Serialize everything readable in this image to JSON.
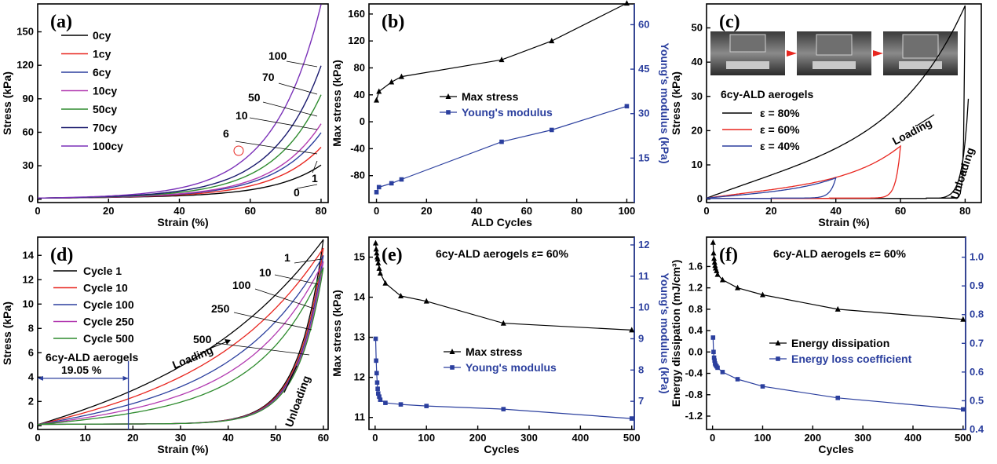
{
  "colors": {
    "black": "#000000",
    "red": "#e8261f",
    "blue": "#2b3f9e",
    "magenta": "#b23ab0",
    "green": "#2e8b2e",
    "navy": "#1a1a6e",
    "purple": "#7a30b8",
    "axis2": "#2b3f9e"
  },
  "chart_data": [
    {
      "id": "a",
      "type": "line",
      "panel_label": "(a)",
      "xlabel": "Strain (%)",
      "ylabel": "Stress (kPa)",
      "xlim": [
        0,
        82
      ],
      "ylim": [
        -3,
        175
      ],
      "xticks": [
        0,
        20,
        40,
        60,
        80
      ],
      "yticks": [
        0,
        30,
        60,
        90,
        120,
        150
      ],
      "legend": {
        "placement": "top-left"
      },
      "series": [
        {
          "name": "0cy",
          "color": "black",
          "k": 29,
          "b": 6,
          "end": 80,
          "curve_label": "0"
        },
        {
          "name": "1cy",
          "color": "red",
          "k": 45,
          "b": 6,
          "end": 80,
          "curve_label": "1"
        },
        {
          "name": "6cy",
          "color": "blue",
          "k": 58,
          "b": 6,
          "end": 80,
          "curve_label": "6"
        },
        {
          "name": "10cy",
          "color": "magenta",
          "k": 66,
          "b": 6,
          "end": 80,
          "curve_label": "10"
        },
        {
          "name": "50cy",
          "color": "green",
          "k": 92,
          "b": 6,
          "end": 80,
          "curve_label": "50"
        },
        {
          "name": "70cy",
          "color": "navy",
          "k": 118,
          "b": 6,
          "end": 80,
          "curve_label": "70"
        },
        {
          "name": "100cy",
          "color": "purple",
          "k": 173,
          "b": 6,
          "end": 80,
          "curve_label": "100"
        }
      ]
    },
    {
      "id": "b",
      "type": "line",
      "panel_label": "(b)",
      "xlabel": "ALD Cycles",
      "ylabel": "Max stress (kPa)",
      "y2label": "Young's modulus (kPa)",
      "xlim": [
        -3,
        103
      ],
      "ylim": [
        -120,
        175
      ],
      "y2lim": [
        0,
        67
      ],
      "xticks": [
        0,
        20,
        40,
        60,
        80,
        100
      ],
      "yticks": [
        -80,
        -40,
        0,
        40,
        80,
        120,
        160
      ],
      "y2ticks": [
        15,
        30,
        45,
        60
      ],
      "series": [
        {
          "name": "Max stress",
          "axis": "left",
          "color": "black",
          "marker": "triangle",
          "x": [
            0,
            1,
            6,
            10,
            50,
            70,
            100
          ],
          "y": [
            32,
            45,
            59,
            67,
            92,
            120,
            176
          ]
        },
        {
          "name": "Young's modulus",
          "axis": "right",
          "color": "blue",
          "marker": "square",
          "x": [
            0,
            1,
            6,
            10,
            50,
            70,
            100
          ],
          "y": [
            3.5,
            5.2,
            6.5,
            7.8,
            20.5,
            24.5,
            32.5
          ]
        }
      ]
    },
    {
      "id": "c",
      "type": "line",
      "panel_label": "(c)",
      "xlabel": "Strain (%)",
      "ylabel": "Stress (kPa)",
      "title": "6cy-ALD aerogels",
      "xlim": [
        0,
        85
      ],
      "ylim": [
        -1,
        57
      ],
      "xticks": [
        0,
        20,
        40,
        60,
        80
      ],
      "yticks": [
        0,
        10,
        20,
        30,
        40,
        50
      ],
      "legend": {
        "placement": "middle-left"
      },
      "series": [
        {
          "name": "ε = 80%",
          "color": "black",
          "max": 80,
          "peak": 56.5,
          "k": 3.2,
          "u": 30,
          "unload_end": 68
        },
        {
          "name": "ε = 60%",
          "color": "red",
          "max": 60,
          "peak": 15.5,
          "k": 3.2,
          "u": 16,
          "unload_end": 38
        },
        {
          "name": "ε = 40%",
          "color": "blue",
          "max": 40,
          "peak": 6.2,
          "k": 2.5,
          "u": 12,
          "unload_end": 20
        }
      ],
      "annotations": [
        "Loading",
        "Unloading"
      ]
    },
    {
      "id": "d",
      "type": "line",
      "panel_label": "(d)",
      "xlabel": "Strain (%)",
      "ylabel": "Stress (kPa)",
      "title": "6cy-ALD aerogels",
      "xlim": [
        0,
        61
      ],
      "ylim": [
        -0.3,
        15.5
      ],
      "xticks": [
        0,
        10,
        20,
        30,
        40,
        50,
        60
      ],
      "yticks": [
        0,
        2,
        4,
        6,
        8,
        10,
        12,
        14
      ],
      "legend": {
        "placement": "top-left"
      },
      "series": [
        {
          "name": "Cycle 1",
          "color": "black",
          "peak": 15.3,
          "start": 0.1,
          "k": 2.5,
          "curve_label": "1"
        },
        {
          "name": "Cycle 10",
          "color": "red",
          "peak": 14.6,
          "start": 0.1,
          "k": 3.0,
          "curve_label": "10"
        },
        {
          "name": "Cycle 100",
          "color": "blue",
          "peak": 14.0,
          "start": 0.1,
          "k": 3.6,
          "curve_label": "100"
        },
        {
          "name": "Cycle 250",
          "color": "magenta",
          "peak": 13.5,
          "start": 0.1,
          "k": 4.2,
          "curve_label": "250"
        },
        {
          "name": "Cycle 500",
          "color": "green",
          "peak": 13.0,
          "start": 0.1,
          "k": 4.8,
          "curve_label": "500"
        }
      ],
      "annotations": [
        "Loading",
        "Unloading",
        "19.05 %"
      ]
    },
    {
      "id": "e",
      "type": "line",
      "panel_label": "(e)",
      "title": "6cy-ALD aerogels ε= 60%",
      "xlabel": "Cycles",
      "ylabel": "Max stress (kPa)",
      "y2label": "Young's modulus (kPa)",
      "xlim": [
        -12,
        505
      ],
      "ylim": [
        10.7,
        15.5
      ],
      "y2lim": [
        6.1,
        12.25
      ],
      "xticks": [
        0,
        100,
        200,
        300,
        400,
        500
      ],
      "yticks": [
        11,
        12,
        13,
        14,
        15
      ],
      "y2ticks": [
        7,
        8,
        9,
        10,
        11,
        12
      ],
      "series": [
        {
          "name": "Max stress",
          "axis": "left",
          "color": "black",
          "marker": "triangle",
          "x": [
            1,
            2,
            3,
            4,
            5,
            6,
            8,
            10,
            20,
            50,
            100,
            250,
            500
          ],
          "y": [
            15.35,
            15.2,
            15.1,
            15.0,
            14.95,
            14.85,
            14.72,
            14.6,
            14.35,
            14.03,
            13.9,
            13.35,
            13.18
          ]
        },
        {
          "name": "Young's modulus",
          "axis": "right",
          "color": "blue",
          "marker": "square",
          "x": [
            1,
            2,
            3,
            4,
            5,
            6,
            8,
            10,
            20,
            50,
            100,
            250,
            500
          ],
          "y": [
            9.0,
            8.3,
            7.9,
            7.6,
            7.4,
            7.25,
            7.15,
            7.05,
            6.95,
            6.9,
            6.85,
            6.75,
            6.45
          ]
        }
      ]
    },
    {
      "id": "f",
      "type": "line",
      "panel_label": "(f)",
      "title": "6cy-ALD aerogels ε= 60%",
      "xlabel": "Cycles",
      "ylabel": "Energy dissipation (mJ/cm³)",
      "y2label": "Energy loss coefficient (ΔU/U)",
      "xlim": [
        -12,
        505
      ],
      "ylim": [
        -1.45,
        2.15
      ],
      "y2lim": [
        0.4,
        1.07
      ],
      "xticks": [
        0,
        100,
        200,
        300,
        400,
        500
      ],
      "yticks": [
        -1.2,
        -0.8,
        -0.4,
        0.0,
        0.4,
        0.8,
        1.2,
        1.6
      ],
      "y2ticks": [
        0.4,
        0.5,
        0.6,
        0.7,
        0.8,
        0.9,
        1.0
      ],
      "series": [
        {
          "name": "Energy dissipation",
          "axis": "left",
          "color": "black",
          "marker": "triangle",
          "x": [
            1,
            2,
            3,
            4,
            5,
            6,
            8,
            10,
            20,
            50,
            100,
            250,
            500
          ],
          "y": [
            2.05,
            1.85,
            1.75,
            1.68,
            1.62,
            1.57,
            1.52,
            1.45,
            1.35,
            1.2,
            1.07,
            0.8,
            0.61
          ]
        },
        {
          "name": "Energy loss coefficient",
          "axis": "right",
          "color": "blue",
          "marker": "square",
          "x": [
            1,
            2,
            3,
            4,
            5,
            6,
            8,
            10,
            20,
            50,
            100,
            250,
            500
          ],
          "y": [
            0.72,
            0.67,
            0.65,
            0.64,
            0.63,
            0.625,
            0.62,
            0.615,
            0.6,
            0.575,
            0.55,
            0.51,
            0.47
          ]
        }
      ]
    }
  ]
}
